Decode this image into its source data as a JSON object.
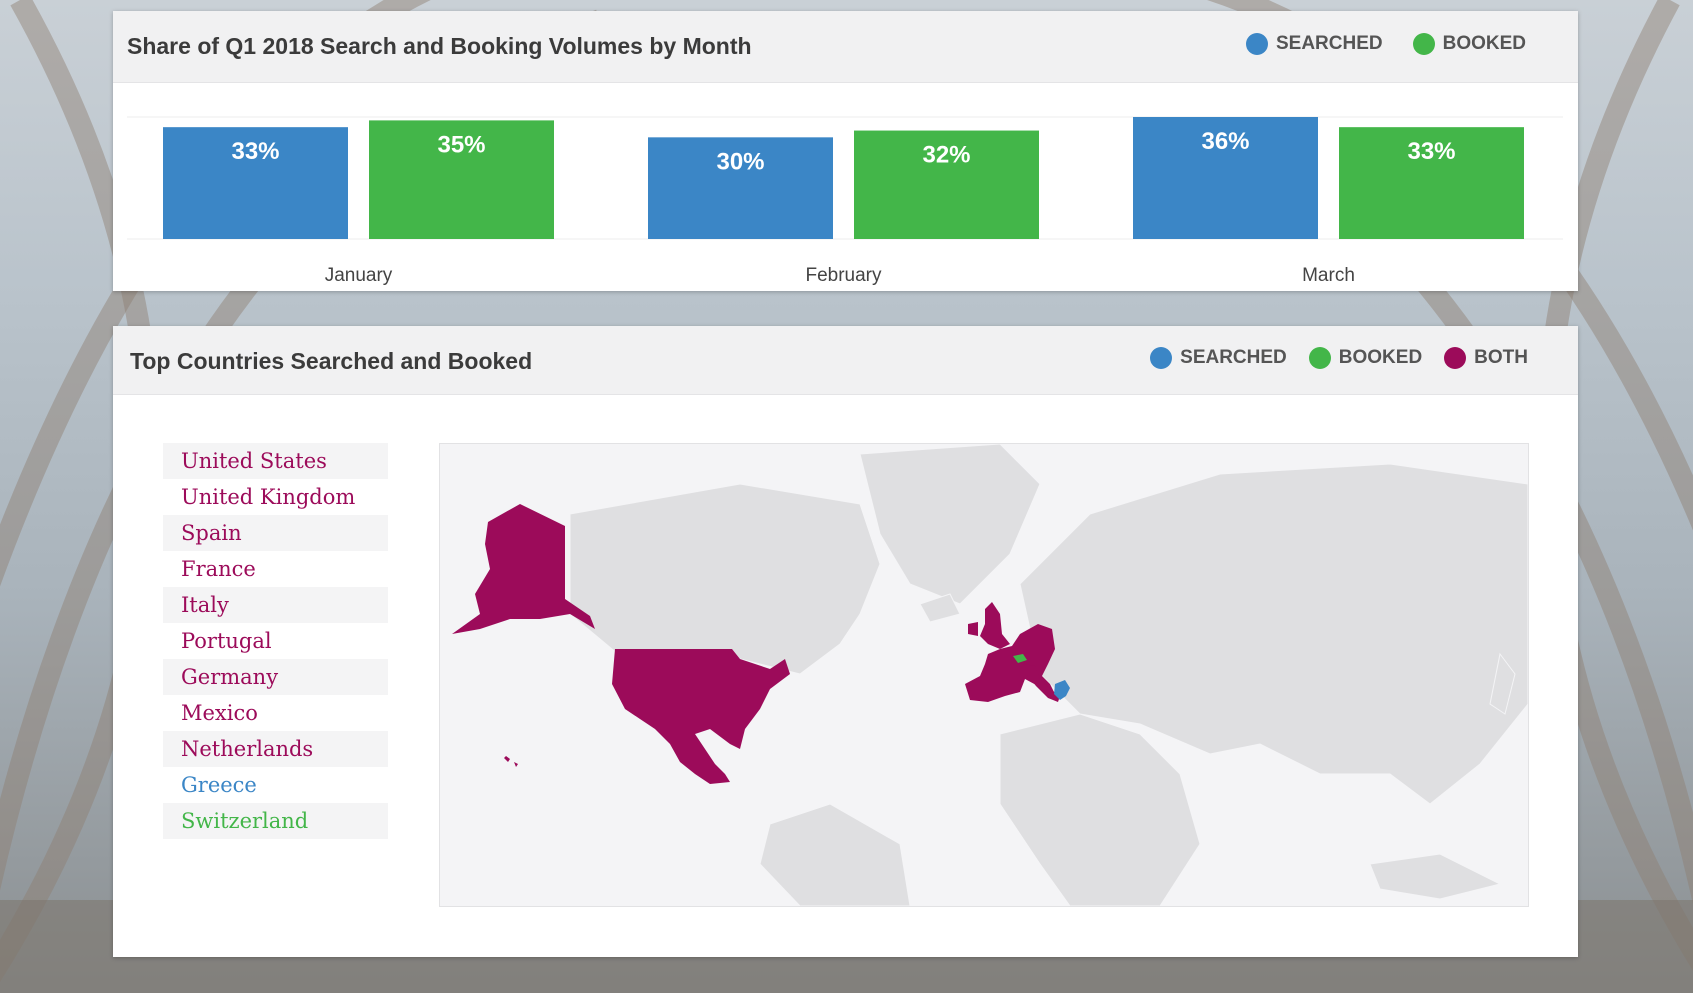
{
  "colors": {
    "searched": "#3b86c6",
    "booked": "#43b649",
    "both": "#9c0b5a"
  },
  "chart_data": {
    "type": "bar",
    "title": "Share of Q1 2018 Search and Booking Volumes by Month",
    "categories": [
      "January",
      "February",
      "March"
    ],
    "series": [
      {
        "name": "SEARCHED",
        "values": [
          33,
          30,
          36
        ],
        "labels": [
          "33%",
          "30%",
          "36%"
        ]
      },
      {
        "name": "BOOKED",
        "values": [
          35,
          32,
          33
        ],
        "labels": [
          "35%",
          "32%",
          "33%"
        ]
      }
    ],
    "ylim": [
      0,
      36
    ],
    "legend": "top-right"
  },
  "map_card": {
    "title": "Top Countries Searched and Booked",
    "legend": [
      {
        "label": "SEARCHED",
        "color": "#3b86c6"
      },
      {
        "label": "BOOKED",
        "color": "#43b649"
      },
      {
        "label": "BOTH",
        "color": "#9c0b5a"
      }
    ],
    "countries": [
      {
        "name": "United States",
        "status": "both"
      },
      {
        "name": "United Kingdom",
        "status": "both"
      },
      {
        "name": "Spain",
        "status": "both"
      },
      {
        "name": "France",
        "status": "both"
      },
      {
        "name": "Italy",
        "status": "both"
      },
      {
        "name": "Portugal",
        "status": "both"
      },
      {
        "name": "Germany",
        "status": "both"
      },
      {
        "name": "Mexico",
        "status": "both"
      },
      {
        "name": "Netherlands",
        "status": "both"
      },
      {
        "name": "Greece",
        "status": "searched"
      },
      {
        "name": "Switzerland",
        "status": "booked"
      }
    ]
  }
}
